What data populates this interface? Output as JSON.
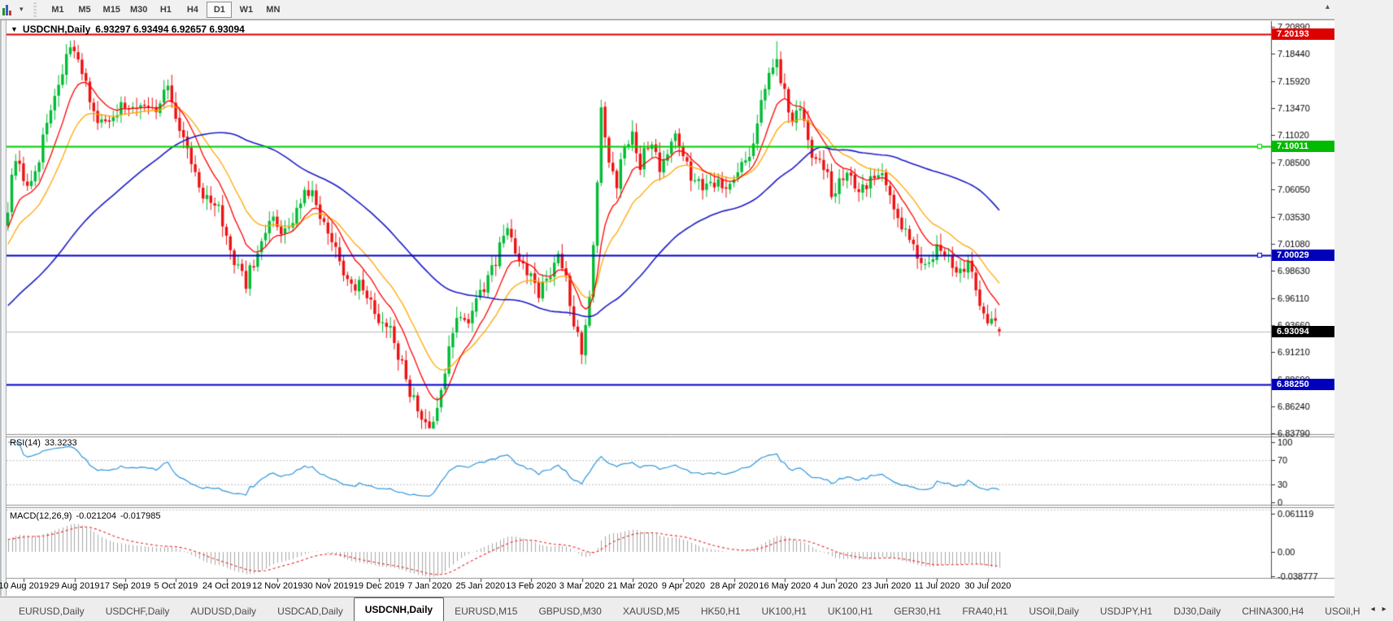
{
  "toolbar": {
    "dropdown_caret": "▾",
    "overflow_caret": "▴",
    "timeframes": [
      {
        "label": "M1",
        "active": false
      },
      {
        "label": "M5",
        "active": false
      },
      {
        "label": "M15",
        "active": false
      },
      {
        "label": "M30",
        "active": false
      },
      {
        "label": "H1",
        "active": false
      },
      {
        "label": "H4",
        "active": false
      },
      {
        "label": "D1",
        "active": true
      },
      {
        "label": "W1",
        "active": false
      },
      {
        "label": "MN",
        "active": false
      }
    ]
  },
  "chart": {
    "title": {
      "caret": "▼",
      "symbol": "USDCNH,Daily",
      "ohlc": "6.93297 6.93494 6.92657 6.93094"
    },
    "rsi": {
      "label": "RSI(14)",
      "value": "33.3233"
    },
    "macd": {
      "label": "MACD(12,26,9)",
      "main": "-0.021204",
      "signal": "-0.017985"
    }
  },
  "chart_data": {
    "type": "candlestick",
    "symbol": "USDCNH",
    "period": "Daily",
    "last_candle": {
      "open": 6.93297,
      "high": 6.93494,
      "low": 6.92657,
      "close": 6.93094
    },
    "price_axis_ticks": [
      "7.20890",
      "7.18440",
      "7.15920",
      "7.13470",
      "7.11020",
      "7.08500",
      "7.06050",
      "7.03530",
      "7.01080",
      "6.98630",
      "6.96110",
      "6.93660",
      "6.91210",
      "6.88690",
      "6.86240",
      "6.83790"
    ],
    "levels": [
      {
        "label": "7.20193",
        "price": 7.20193,
        "line": "#dd0000",
        "badge": "#dd0000",
        "width": 2,
        "handle": false
      },
      {
        "label": "7.10011",
        "price": 7.10011,
        "line": "#00cc00",
        "badge": "#00bb00",
        "width": 2,
        "handle": true
      },
      {
        "label": "7.00029",
        "price": 7.00029,
        "line": "#0000cc",
        "badge": "#0000bb",
        "width": 2,
        "handle": true
      },
      {
        "label": "6.88250",
        "price": 6.8825,
        "line": "#0000cc",
        "badge": "#0000bb",
        "width": 2,
        "handle": false
      },
      {
        "label": "6.93094",
        "price": 6.93094,
        "line": "#b9b9b9",
        "badge": "#000000",
        "width": 1,
        "handle": false,
        "current": true
      }
    ],
    "date_labels": [
      "10 Aug 2019",
      "29 Aug 2019",
      "17 Sep 2019",
      "5 Oct 2019",
      "24 Oct 2019",
      "12 Nov 2019",
      "30 Nov 2019",
      "19 Dec 2019",
      "7 Jan 2020",
      "25 Jan 2020",
      "13 Feb 2020",
      "3 Mar 2020",
      "21 Mar 2020",
      "9 Apr 2020",
      "28 Apr 2020",
      "16 May 2020",
      "4 Jun 2020",
      "23 Jun 2020",
      "11 Jul 2020",
      "30 Jul 2020"
    ],
    "price_path_anchors": [
      [
        0,
        7.042
      ],
      [
        2,
        7.088
      ],
      [
        4,
        7.066
      ],
      [
        7,
        7.075
      ],
      [
        9,
        7.102
      ],
      [
        12,
        7.148
      ],
      [
        14,
        7.17
      ],
      [
        16,
        7.188
      ],
      [
        18,
        7.176
      ],
      [
        20,
        7.158
      ],
      [
        23,
        7.118
      ],
      [
        26,
        7.124
      ],
      [
        29,
        7.14
      ],
      [
        32,
        7.128
      ],
      [
        35,
        7.146
      ],
      [
        38,
        7.128
      ],
      [
        41,
        7.155
      ],
      [
        44,
        7.118
      ],
      [
        47,
        7.08
      ],
      [
        50,
        7.058
      ],
      [
        53,
        7.045
      ],
      [
        56,
        7.018
      ],
      [
        59,
        6.986
      ],
      [
        61,
        6.972
      ],
      [
        64,
        7.006
      ],
      [
        67,
        7.028
      ],
      [
        70,
        7.02
      ],
      [
        73,
        7.034
      ],
      [
        76,
        7.05
      ],
      [
        78,
        7.06
      ],
      [
        80,
        7.038
      ],
      [
        83,
        7.01
      ],
      [
        86,
        6.988
      ],
      [
        89,
        6.972
      ],
      [
        92,
        6.96
      ],
      [
        95,
        6.946
      ],
      [
        98,
        6.928
      ],
      [
        101,
        6.902
      ],
      [
        104,
        6.868
      ],
      [
        106,
        6.85
      ],
      [
        108,
        6.846
      ],
      [
        110,
        6.864
      ],
      [
        112,
        6.89
      ],
      [
        114,
        6.928
      ],
      [
        116,
        6.95
      ],
      [
        118,
        6.936
      ],
      [
        120,
        6.954
      ],
      [
        122,
        6.972
      ],
      [
        124,
        6.99
      ],
      [
        126,
        7.01
      ],
      [
        128,
        7.02
      ],
      [
        130,
        7.006
      ],
      [
        133,
        6.984
      ],
      [
        136,
        6.966
      ],
      [
        139,
        6.984
      ],
      [
        141,
        6.996
      ],
      [
        143,
        6.972
      ],
      [
        145,
        6.94
      ],
      [
        147,
        6.918
      ],
      [
        149,
        6.956
      ],
      [
        151,
        7.06
      ],
      [
        152,
        7.14
      ],
      [
        154,
        7.09
      ],
      [
        156,
        7.062
      ],
      [
        158,
        7.096
      ],
      [
        160,
        7.116
      ],
      [
        162,
        7.082
      ],
      [
        164,
        7.1
      ],
      [
        167,
        7.086
      ],
      [
        170,
        7.106
      ],
      [
        173,
        7.092
      ],
      [
        176,
        7.07
      ],
      [
        179,
        7.056
      ],
      [
        182,
        7.074
      ],
      [
        185,
        7.06
      ],
      [
        188,
        7.08
      ],
      [
        191,
        7.106
      ],
      [
        193,
        7.134
      ],
      [
        195,
        7.164
      ],
      [
        197,
        7.183
      ],
      [
        199,
        7.15
      ],
      [
        201,
        7.116
      ],
      [
        203,
        7.136
      ],
      [
        205,
        7.106
      ],
      [
        208,
        7.08
      ],
      [
        211,
        7.06
      ],
      [
        214,
        7.076
      ],
      [
        217,
        7.058
      ],
      [
        220,
        7.066
      ],
      [
        223,
        7.076
      ],
      [
        226,
        7.056
      ],
      [
        229,
        7.026
      ],
      [
        232,
        7.004
      ],
      [
        235,
        6.994
      ],
      [
        238,
        7.001
      ],
      [
        241,
        6.997
      ],
      [
        244,
        6.987
      ],
      [
        246,
        6.991
      ],
      [
        248,
        6.97
      ],
      [
        250,
        6.95
      ],
      [
        252,
        6.936
      ],
      [
        254,
        6.9309
      ]
    ],
    "rsi": {
      "period": 14,
      "value": 33.3233,
      "axis_ticks": [
        "100",
        "70",
        "30",
        "0"
      ],
      "level_lines": [
        70,
        30
      ],
      "color": "#2f96dc"
    },
    "macd": {
      "fast": 12,
      "slow": 26,
      "signal": 9,
      "main_value": -0.021204,
      "signal_value": -0.017985,
      "axis_ticks": [
        "0.061119",
        "0.00",
        "-0.038777"
      ],
      "hist_color": "#a8a8a8",
      "signal_color": "#ee2222"
    },
    "ma_lines": {
      "fast_color": "#ff0000",
      "mid_color": "#ffa800",
      "slow_color": "#1c1cc8"
    },
    "candle_up": "#00bb33",
    "candle_down": "#ee1111",
    "seed": 9
  },
  "tabs": {
    "items": [
      {
        "label": "EURUSD,Daily",
        "active": false
      },
      {
        "label": "USDCHF,Daily",
        "active": false
      },
      {
        "label": "AUDUSD,Daily",
        "active": false
      },
      {
        "label": "USDCAD,Daily",
        "active": false
      },
      {
        "label": "USDCNH,Daily",
        "active": true
      },
      {
        "label": "EURUSD,M15",
        "active": false
      },
      {
        "label": "GBPUSD,M30",
        "active": false
      },
      {
        "label": "XAUUSD,M5",
        "active": false
      },
      {
        "label": "HK50,H1",
        "active": false
      },
      {
        "label": "UK100,H1",
        "active": false
      },
      {
        "label": "UK100,H1",
        "active": false
      },
      {
        "label": "GER30,H1",
        "active": false
      },
      {
        "label": "FRA40,H1",
        "active": false
      },
      {
        "label": "USOil,Daily",
        "active": false
      },
      {
        "label": "USDJPY,H1",
        "active": false
      },
      {
        "label": "DJ30,Daily",
        "active": false
      },
      {
        "label": "CHINA300,H4",
        "active": false
      },
      {
        "label": "USOil,H",
        "active": false
      }
    ],
    "scroll_left": "◂",
    "scroll_right": "▸"
  }
}
